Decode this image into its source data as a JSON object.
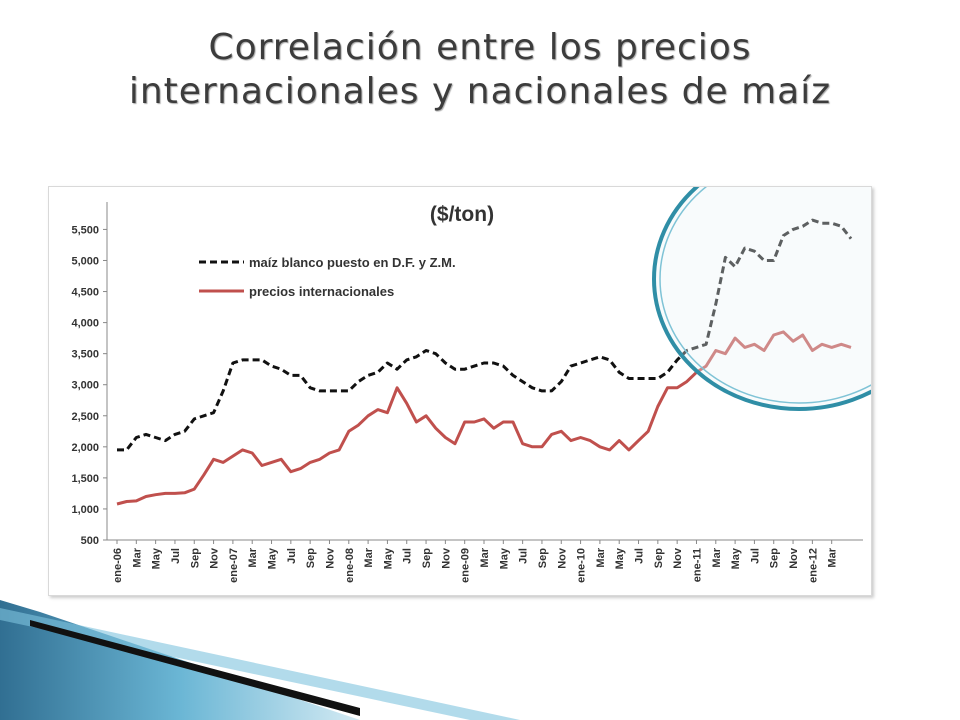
{
  "slide": {
    "title_line1": "Correlación entre los precios",
    "title_line2": "internacionales y nacionales de maíz"
  },
  "chart_data": {
    "type": "line",
    "title": "($/ton)",
    "ylim": [
      500,
      5700
    ],
    "yticks": [
      500,
      1000,
      1500,
      2000,
      2500,
      3000,
      3500,
      4000,
      4500,
      5000,
      5500
    ],
    "ytick_labels": [
      "500",
      "1,000",
      "1,500",
      "2,000",
      "2,500",
      "3,000",
      "3,500",
      "4,000",
      "4,500",
      "5,000",
      "5,500"
    ],
    "x_tick_labels": [
      "ene-06",
      "Mar",
      "May",
      "Jul",
      "Sep",
      "Nov",
      "ene-07",
      "Mar",
      "May",
      "Jul",
      "Sep",
      "Nov",
      "ene-08",
      "Mar",
      "May",
      "Jul",
      "Sep",
      "Nov",
      "ene-09",
      "Mar",
      "May",
      "Jul",
      "Sep",
      "Nov",
      "ene-10",
      "Mar",
      "May",
      "Jul",
      "Sep",
      "Nov",
      "ene-11",
      "Mar",
      "May",
      "Jul",
      "Sep",
      "Nov",
      "ene-12",
      "Mar"
    ],
    "grid": false,
    "legend_position": "top-left",
    "series": [
      {
        "name": "maíz blanco puesto en D.F. y Z.M.",
        "style": "dashed",
        "color": "#111111",
        "values": [
          1950,
          1950,
          2150,
          2200,
          2150,
          2100,
          2200,
          2250,
          2450,
          2500,
          2550,
          2900,
          3350,
          3400,
          3400,
          3400,
          3300,
          3250,
          3150,
          3150,
          2950,
          2900,
          2900,
          2900,
          2900,
          3050,
          3150,
          3200,
          3350,
          3250,
          3400,
          3450,
          3550,
          3500,
          3350,
          3250,
          3250,
          3300,
          3350,
          3350,
          3300,
          3150,
          3050,
          2950,
          2900,
          2900,
          3050,
          3300,
          3350,
          3400,
          3450,
          3400,
          3200,
          3100,
          3100,
          3100,
          3100,
          3200,
          3400,
          3550,
          3600,
          3650,
          4300,
          5050,
          4900,
          5200,
          5150,
          5000,
          5000,
          5400,
          5500,
          5550,
          5650,
          5600,
          5600,
          5550,
          5350
        ]
      },
      {
        "name": "precios internacionales",
        "style": "solid",
        "color": "#c0504d",
        "values": [
          1080,
          1120,
          1130,
          1200,
          1230,
          1250,
          1250,
          1260,
          1320,
          1550,
          1800,
          1750,
          1850,
          1950,
          1900,
          1700,
          1750,
          1800,
          1600,
          1650,
          1750,
          1800,
          1900,
          1950,
          2250,
          2350,
          2500,
          2600,
          2550,
          2950,
          2700,
          2400,
          2500,
          2300,
          2150,
          2050,
          2400,
          2400,
          2450,
          2300,
          2400,
          2400,
          2050,
          2000,
          2000,
          2200,
          2250,
          2100,
          2150,
          2100,
          2000,
          1950,
          2100,
          1950,
          2100,
          2250,
          2650,
          2950,
          2950,
          3050,
          3200,
          3300,
          3550,
          3500,
          3750,
          3600,
          3650,
          3550,
          3800,
          3850,
          3700,
          3800,
          3550,
          3650,
          3600,
          3650,
          3600
        ]
      }
    ]
  }
}
